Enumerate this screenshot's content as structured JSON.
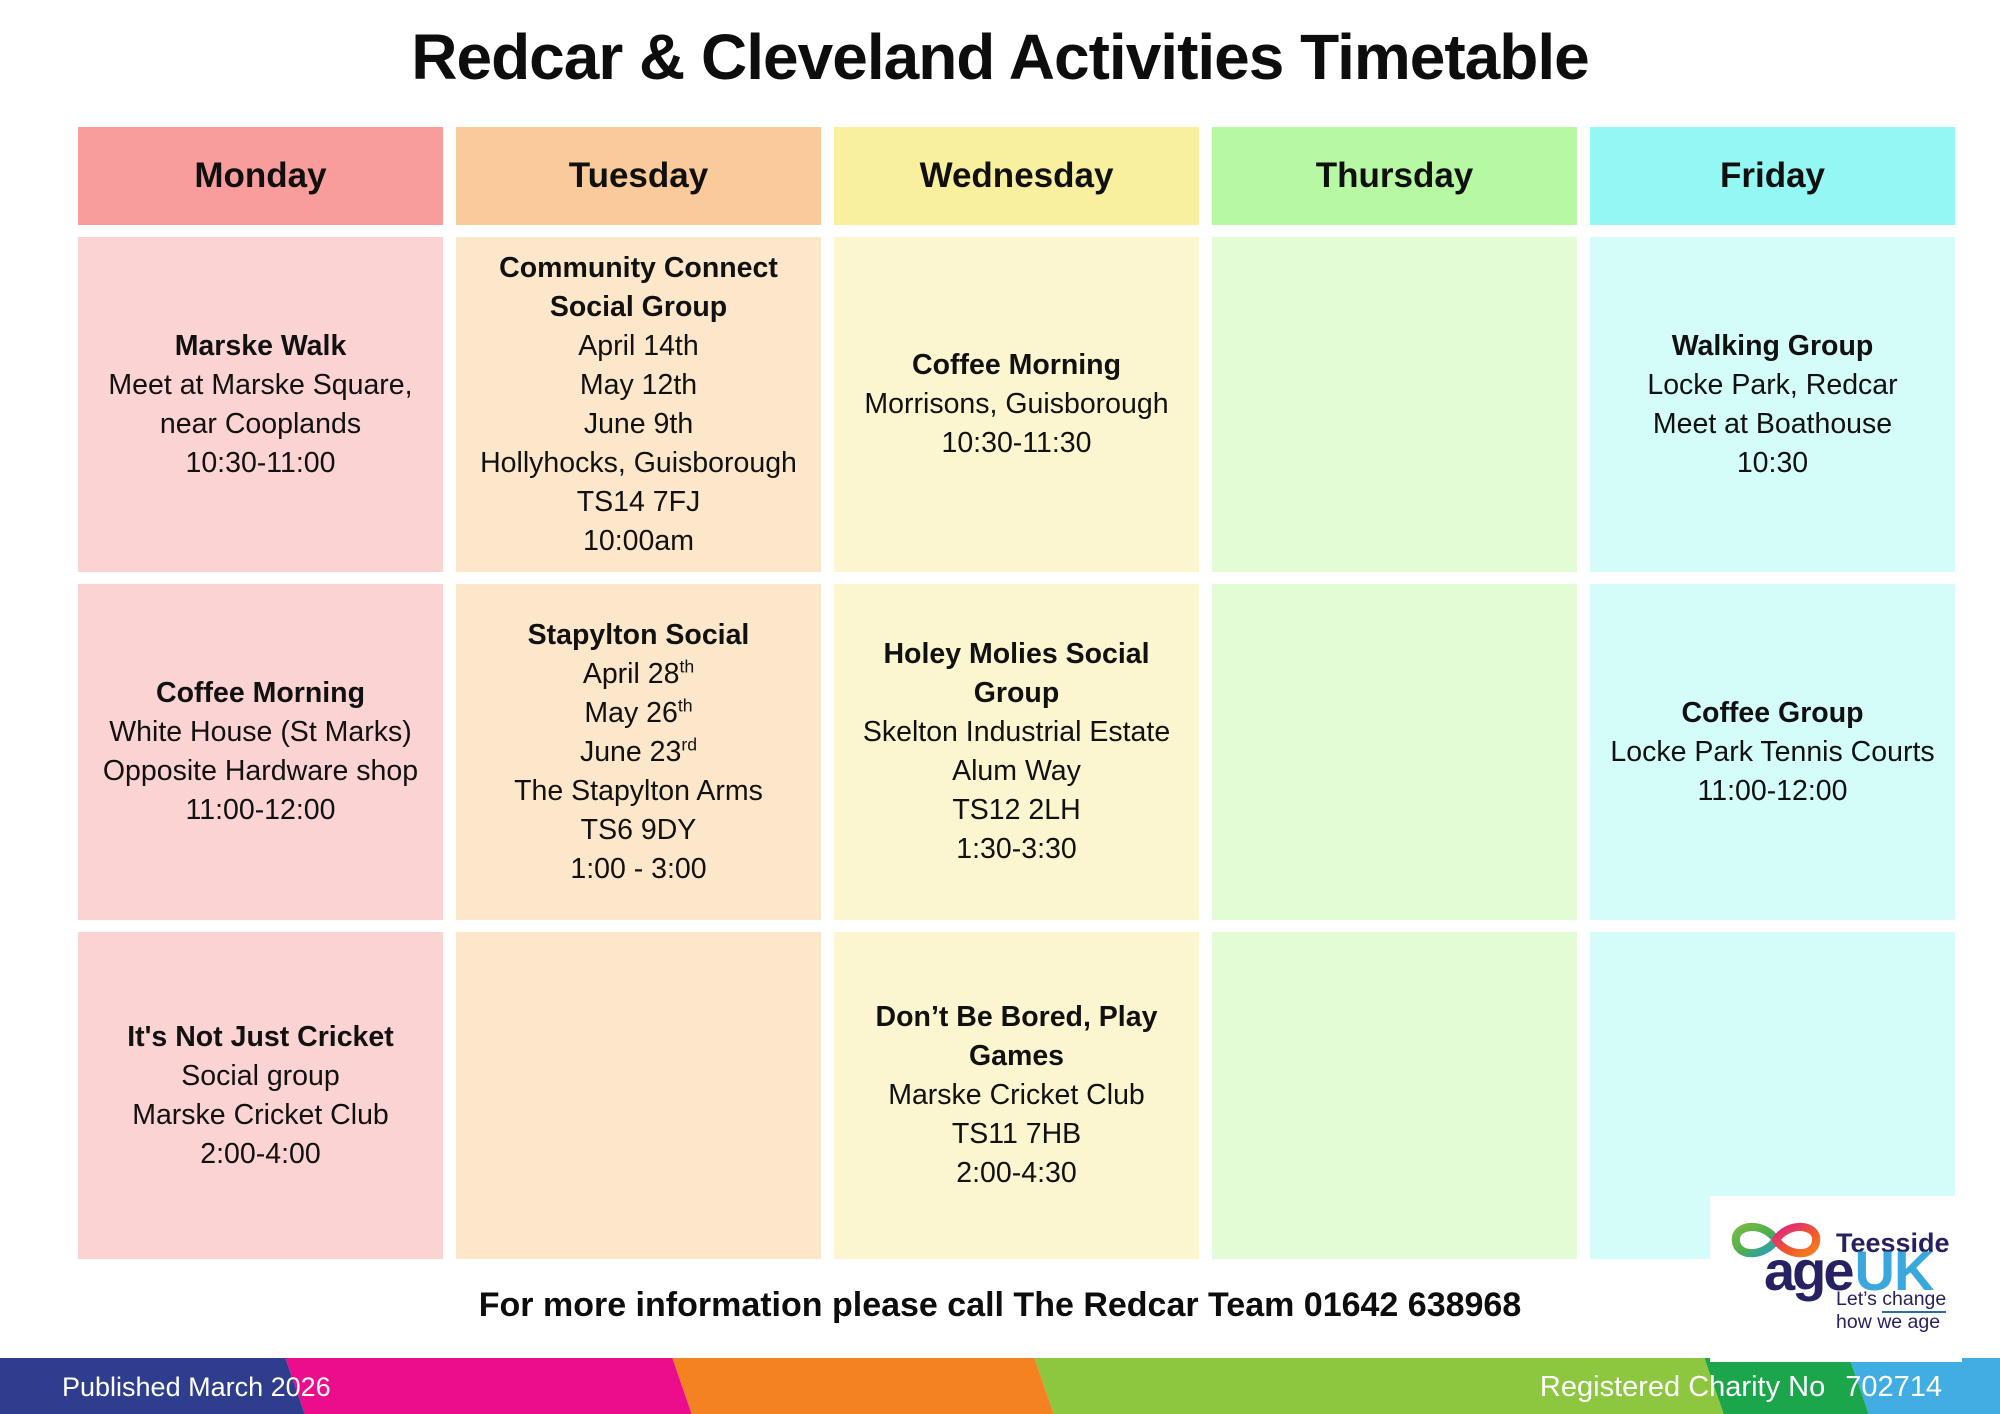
{
  "title": "Redcar & Cleveland Activities Timetable",
  "timetable": {
    "days": [
      {
        "label": "Monday",
        "header_color": "#F99C9C",
        "cell_color": "#FBD3D3",
        "cells": [
          {
            "title": "Marske Walk",
            "lines": [
              {
                "t": "Meet at Marske Square,"
              },
              {
                "t": "near Cooplands"
              },
              {
                "t": "10:30-11:00"
              }
            ]
          },
          {
            "title": "Coffee Morning",
            "lines": [
              {
                "t": "White House (St Marks)"
              },
              {
                "t": "Opposite Hardware shop"
              },
              {
                "t": "11:00-12:00"
              }
            ]
          },
          {
            "title": "It's Not Just Cricket",
            "lines": [
              {
                "t": "Social group"
              },
              {
                "t": "Marske Cricket Club"
              },
              {
                "t": "2:00-4:00"
              }
            ]
          }
        ]
      },
      {
        "label": "Tuesday",
        "header_color": "#FBCA9B",
        "cell_color": "#FCE7CB",
        "cells": [
          {
            "title": "Community Connect Social Group",
            "lines": [
              {
                "t": "April 14th"
              },
              {
                "t": "May 12th"
              },
              {
                "t": "June 9th"
              },
              {
                "t": "Hollyhocks, Guisborough"
              },
              {
                "t": "TS14 7FJ"
              },
              {
                "t": "10:00am"
              }
            ]
          },
          {
            "title": "Stapylton Social",
            "lines": [
              {
                "t": "April 28",
                "sup": "th"
              },
              {
                "t": "May 26",
                "sup": "th"
              },
              {
                "t": "June 23",
                "sup": "rd"
              },
              {
                "t": "The Stapylton Arms"
              },
              {
                "t": "TS6 9DY"
              },
              {
                "t": "1:00 - 3:00"
              }
            ]
          },
          {
            "title": "",
            "lines": []
          }
        ]
      },
      {
        "label": "Wednesday",
        "header_color": "#F8EF9F",
        "cell_color": "#FBF5D0",
        "cells": [
          {
            "title": "Coffee Morning",
            "lines": [
              {
                "t": "Morrisons, Guisborough"
              },
              {
                "t": "10:30-11:30"
              }
            ]
          },
          {
            "title": "Holey Molies Social Group",
            "lines": [
              {
                "t": "Skelton Industrial Estate"
              },
              {
                "t": "Alum Way"
              },
              {
                "t": "TS12 2LH"
              },
              {
                "t": "1:30-3:30"
              }
            ]
          },
          {
            "title": "Don’t Be Bored, Play Games",
            "lines": [
              {
                "t": "Marske Cricket Club"
              },
              {
                "t": "TS11 7HB"
              },
              {
                "t": "2:00-4:30"
              }
            ]
          }
        ]
      },
      {
        "label": "Thursday",
        "header_color": "#B7F9A3",
        "cell_color": "#E3FCD5",
        "cells": [
          {
            "title": "",
            "lines": []
          },
          {
            "title": "",
            "lines": []
          },
          {
            "title": "",
            "lines": []
          }
        ]
      },
      {
        "label": "Friday",
        "header_color": "#93F8F3",
        "cell_color": "#D4FCF9",
        "cells": [
          {
            "title": "Walking Group",
            "lines": [
              {
                "t": "Locke Park, Redcar"
              },
              {
                "t": "Meet at Boathouse"
              },
              {
                "t": "10:30"
              }
            ]
          },
          {
            "title": "Coffee Group",
            "lines": [
              {
                "t": "Locke Park Tennis Courts"
              },
              {
                "t": "11:00-12:00"
              }
            ]
          },
          {
            "title": "",
            "lines": []
          }
        ]
      }
    ]
  },
  "footer": {
    "info": "For more information please call The Redcar Team 01642 638968"
  },
  "logo": {
    "region": "Teesside",
    "brand_age": "age",
    "brand_uk": "UK",
    "tagline_prefix": "Let’s ",
    "tagline_underlined": "change",
    "tagline_line2": "how we age",
    "navy": "#262262",
    "light_blue": "#3AA8DC"
  },
  "bottom_bar": {
    "published": "Published March 2026",
    "charity_label": "Registered Charity No",
    "charity_number": "702714",
    "segments": [
      {
        "color": "#2F3D8F",
        "from": -40,
        "to": 295
      },
      {
        "color": "#EB0D8C",
        "from": 295,
        "to": 682
      },
      {
        "color": "#F58220",
        "from": 682,
        "to": 1044
      },
      {
        "color": "#8DC63F",
        "from": 1044,
        "to": 1714
      },
      {
        "color": "#1BA64B",
        "from": 1714,
        "to": 1859
      },
      {
        "color": "#41ADE2",
        "from": 1859,
        "to": 2040
      }
    ]
  }
}
